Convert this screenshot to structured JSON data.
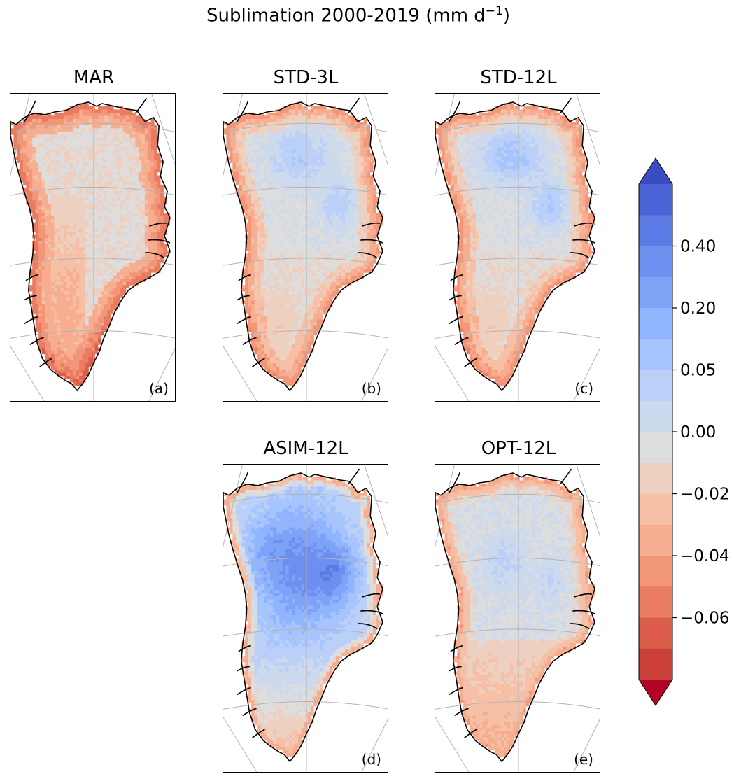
{
  "figure": {
    "title_main": "Sublimation 2000-2019 (mm d",
    "title_sup": "−1",
    "title_end": ")"
  },
  "panels": [
    {
      "id": "a",
      "title": "MAR",
      "tag": "(a)",
      "mode": "mar"
    },
    {
      "id": "b",
      "title": "STD-3L",
      "tag": "(b)",
      "mode": "std3"
    },
    {
      "id": "c",
      "title": "STD-12L",
      "tag": "(c)",
      "mode": "std12"
    },
    {
      "id": "d",
      "title": "ASIM-12L",
      "tag": "(d)",
      "mode": "asim"
    },
    {
      "id": "e",
      "title": "OPT-12L",
      "tag": "(e)",
      "mode": "opt"
    }
  ],
  "colorbar": {
    "tick_labels": [
      "0.40",
      "0.20",
      "0.05",
      "0.00",
      "−0.02",
      "−0.04",
      "−0.06"
    ],
    "tick_levels": [
      2,
      4,
      6,
      8,
      10,
      12,
      14
    ],
    "colors": [
      "#3b4cc0",
      "#4a63d6",
      "#5b7ae5",
      "#6c8ff0",
      "#7ea2f8",
      "#91b4fe",
      "#a6c4fe",
      "#bad0f8",
      "#cdd9ec",
      "#dddddd",
      "#eed0c0",
      "#f5c0a6",
      "#f7ad8f",
      "#f39577",
      "#e97b60",
      "#dc5d4b",
      "#cc403a",
      "#b40426"
    ],
    "extend": "both"
  },
  "colors": {
    "land": "#ffffff",
    "coast": "#000000",
    "grid": "#b3b3b3"
  }
}
